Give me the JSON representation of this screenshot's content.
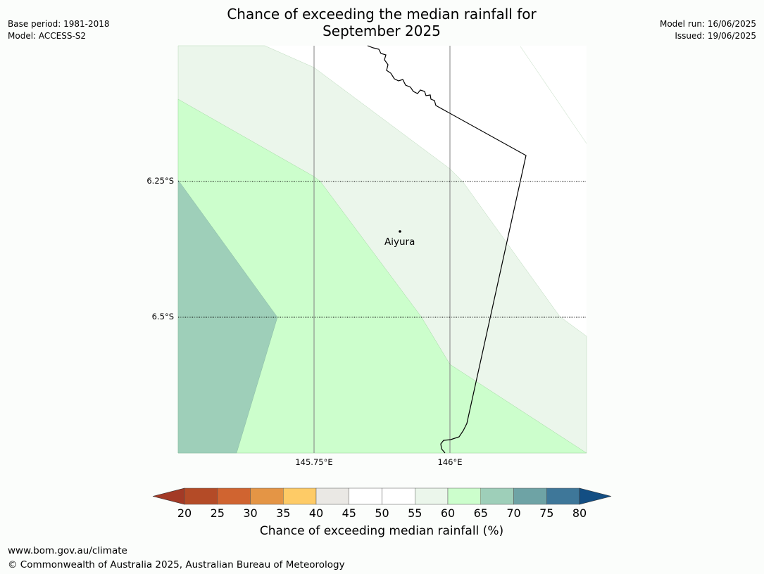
{
  "title": "Chance of exceeding the median rainfall for",
  "title_line2": "September 2025",
  "meta_left": [
    "Base period: 1981-2018",
    "Model: ACCESS-S2"
  ],
  "meta_right": [
    "Model run: 16/06/2025",
    "Issued: 19/06/2025"
  ],
  "map": {
    "lat_labels": [
      "6.25°S",
      "6.5°S"
    ],
    "lon_labels": [
      "145.75°E",
      "146°E"
    ],
    "place": "Aiyura"
  },
  "colorbar": {
    "title": "Chance of exceeding median rainfall (%)",
    "ticks": [
      "20",
      "25",
      "30",
      "35",
      "40",
      "45",
      "50",
      "55",
      "60",
      "65",
      "70",
      "75",
      "80"
    ],
    "colors": [
      "#a33a26",
      "#b44b27",
      "#d06430",
      "#e49545",
      "#fecb66",
      "#eae8e4",
      "#ffffff",
      "#ffffff",
      "#ebf6eb",
      "#ccfecc",
      "#9ecfb9",
      "#6ea3a5",
      "#3e7799",
      "#134e83"
    ]
  },
  "footer": {
    "url": "www.bom.gov.au/climate",
    "copyright": "© Commonwealth of Australia 2025, Australian Bureau of Meteorology"
  }
}
